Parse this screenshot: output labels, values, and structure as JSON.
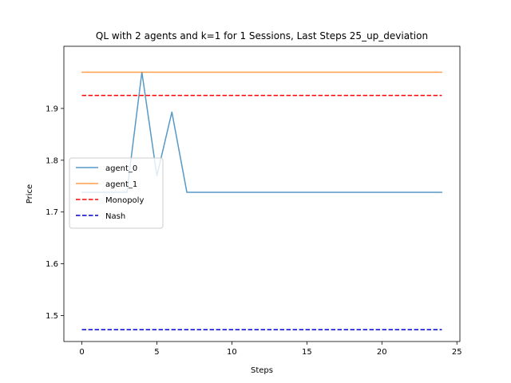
{
  "chart_data": {
    "type": "line",
    "title": "QL with 2 agents and k=1 for 1 Sessions, Last Steps 25_up_deviation",
    "xlabel": "Steps",
    "ylabel": "Price",
    "xlim": [
      -1.2,
      25.2
    ],
    "ylim": [
      1.45,
      2.02
    ],
    "x_ticks": [
      0,
      5,
      10,
      15,
      20,
      25
    ],
    "y_ticks": [
      1.5,
      1.6,
      1.7,
      1.8,
      1.9
    ],
    "grid": false,
    "legend_position": "center-left",
    "series": [
      {
        "name": "agent_0",
        "color": "#1f77b4",
        "style": "solid",
        "x": [
          0,
          1,
          2,
          3,
          4,
          5,
          6,
          7,
          8,
          9,
          10,
          11,
          12,
          13,
          14,
          15,
          16,
          17,
          18,
          19,
          20,
          21,
          22,
          23,
          24
        ],
        "y": [
          1.738,
          1.738,
          1.738,
          1.738,
          1.97,
          1.77,
          1.893,
          1.738,
          1.738,
          1.738,
          1.738,
          1.738,
          1.738,
          1.738,
          1.738,
          1.738,
          1.738,
          1.738,
          1.738,
          1.738,
          1.738,
          1.738,
          1.738,
          1.738,
          1.738
        ]
      },
      {
        "name": "agent_1",
        "color": "#ff7f0e",
        "style": "solid",
        "x": [
          0,
          1,
          2,
          3,
          4,
          5,
          6,
          7,
          8,
          9,
          10,
          11,
          12,
          13,
          14,
          15,
          16,
          17,
          18,
          19,
          20,
          21,
          22,
          23,
          24
        ],
        "y": [
          1.97,
          1.97,
          1.97,
          1.97,
          1.97,
          1.97,
          1.97,
          1.97,
          1.97,
          1.97,
          1.97,
          1.97,
          1.97,
          1.97,
          1.97,
          1.97,
          1.97,
          1.97,
          1.97,
          1.97,
          1.97,
          1.97,
          1.97,
          1.97,
          1.97
        ]
      },
      {
        "name": "Monopoly",
        "color": "#ff0000",
        "style": "dashed",
        "x": [
          0,
          24
        ],
        "y": [
          1.925,
          1.925
        ]
      },
      {
        "name": "Nash",
        "color": "#0000cc",
        "style": "dashed",
        "x": [
          0,
          24
        ],
        "y": [
          1.473,
          1.473
        ]
      }
    ]
  }
}
